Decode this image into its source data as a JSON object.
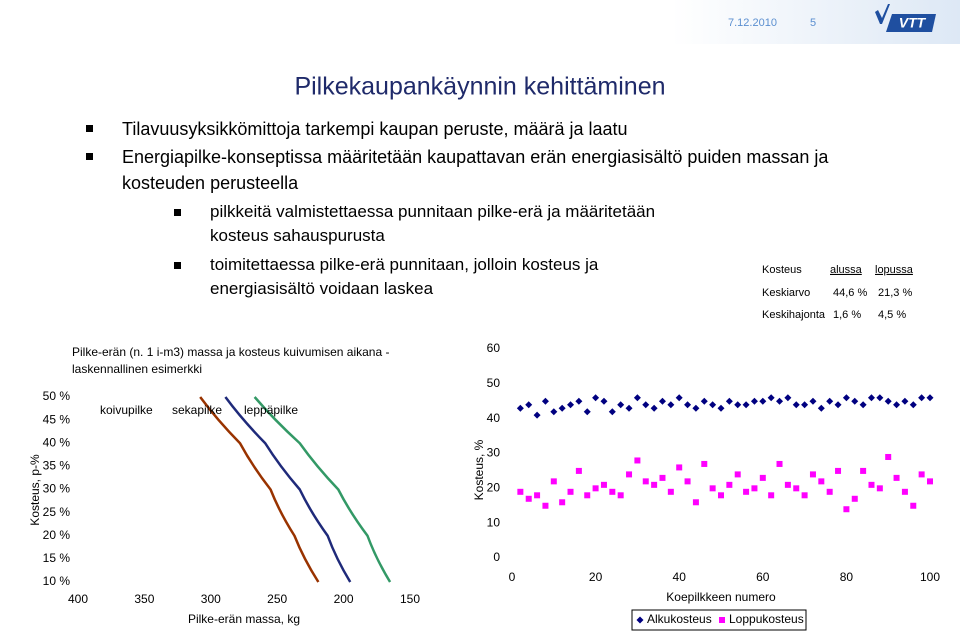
{
  "header": {
    "date": "7.12.2010",
    "page": "5"
  },
  "title": "Pilkekaupankäynnin kehittäminen",
  "bullets": [
    {
      "level": 1,
      "text": "Tilavuusyksikkömittoja tarkempi kaupan peruste, määrä ja laatu"
    },
    {
      "level": 1,
      "text": "Energiapilke-konseptissa määritetään kaupattavan erän energiasisältö puiden massan ja kosteuden perusteella"
    },
    {
      "level": 2,
      "text": "pilkkeitä valmistettaessa punnitaan pilke-erä ja määritetään kosteus sahauspurusta"
    },
    {
      "level": 2,
      "text": "toimitettaessa pilke-erä punnitaan, jolloin kosteus ja energiasisältö voidaan laskea"
    }
  ],
  "table": {
    "header": [
      "Kosteus",
      "alussa",
      "lopussa"
    ],
    "rows": [
      [
        "Keskiarvo",
        "44,6 %",
        "21,3 %"
      ],
      [
        "Keskihajonta",
        "1,6 %",
        "4,5 %"
      ]
    ]
  },
  "chart_data": [
    {
      "type": "line",
      "title": "Pilke-erän (n. 1 i-m3) massa ja kosteus kuivumisen aikana - laskennallinen esimerkki",
      "x_label": "Pilke-erän massa, kg",
      "y_label": "Kosteus, p-%",
      "xlim": [
        400,
        150
      ],
      "xticks": [
        400,
        350,
        300,
        250,
        200,
        150
      ],
      "ylim": [
        10,
        50
      ],
      "yticks": [
        {
          "value": 10,
          "label": "10 %"
        },
        {
          "value": 15,
          "label": "15 %"
        },
        {
          "value": 20,
          "label": "20 %"
        },
        {
          "value": 25,
          "label": "25 %"
        },
        {
          "value": 30,
          "label": "30 %"
        },
        {
          "value": 35,
          "label": "35 %"
        },
        {
          "value": 40,
          "label": "40 %"
        },
        {
          "value": 45,
          "label": "45 %"
        },
        {
          "value": 50,
          "label": "50 %"
        }
      ],
      "legend": "top-left",
      "series": [
        {
          "name": "koivupilke",
          "color": "#993300",
          "x": [
            308,
            278,
            255,
            237,
            219
          ],
          "values": [
            50,
            40,
            30,
            20,
            10
          ]
        },
        {
          "name": "sekapilke",
          "color": "#1f2a7a",
          "x": [
            289,
            259,
            233,
            212,
            195
          ],
          "values": [
            50,
            40,
            30,
            20,
            10
          ]
        },
        {
          "name": "leppäpilke",
          "color": "#339966",
          "x": [
            267,
            233,
            204,
            182,
            165
          ],
          "values": [
            50,
            40,
            30,
            20,
            10
          ]
        }
      ]
    },
    {
      "type": "scatter",
      "x_label": "Koepilkkeen numero",
      "y_label": "Kosteus, %",
      "xlim": [
        0,
        100
      ],
      "xticks": [
        0,
        20,
        40,
        60,
        80,
        100
      ],
      "ylim": [
        0,
        60
      ],
      "yticks": [
        0,
        10,
        20,
        30,
        40,
        50,
        60
      ],
      "legend": "bottom",
      "x": [
        2,
        4,
        6,
        8,
        10,
        12,
        14,
        16,
        18,
        20,
        22,
        24,
        26,
        28,
        30,
        32,
        34,
        36,
        38,
        40,
        42,
        44,
        46,
        48,
        50,
        52,
        54,
        56,
        58,
        60,
        62,
        64,
        66,
        68,
        70,
        72,
        74,
        76,
        78,
        80,
        82,
        84,
        86,
        88,
        90,
        92,
        94,
        96,
        98,
        100
      ],
      "series": [
        {
          "name": "Alkukosteus",
          "color": "#000080",
          "marker": "diamond",
          "values": [
            43,
            44,
            41,
            45,
            42,
            43,
            44,
            45,
            42,
            46,
            45,
            42,
            44,
            43,
            46,
            44,
            43,
            45,
            44,
            46,
            44,
            43,
            45,
            44,
            43,
            45,
            44,
            44,
            45,
            45,
            46,
            45,
            46,
            44,
            44,
            45,
            43,
            45,
            44,
            46,
            45,
            44,
            46,
            46,
            45,
            44,
            45,
            44,
            46,
            46
          ]
        },
        {
          "name": "Loppukosteus",
          "color": "#ff00ff",
          "marker": "square",
          "values": [
            19,
            17,
            18,
            15,
            22,
            16,
            19,
            25,
            18,
            20,
            21,
            19,
            18,
            24,
            28,
            22,
            21,
            23,
            19,
            26,
            22,
            16,
            27,
            20,
            18,
            21,
            24,
            19,
            20,
            23,
            18,
            27,
            21,
            20,
            18,
            24,
            22,
            19,
            25,
            14,
            17,
            25,
            21,
            20,
            29,
            23,
            19,
            15,
            24,
            22
          ]
        }
      ]
    }
  ]
}
